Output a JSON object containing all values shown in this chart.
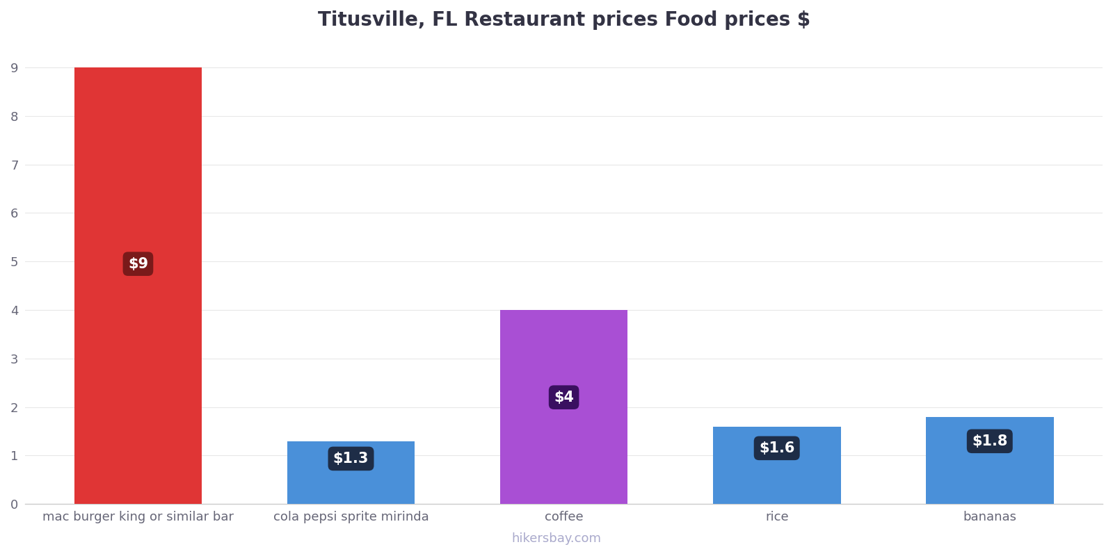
{
  "title": "Titusville, FL Restaurant prices Food prices $",
  "categories": [
    "mac burger king or similar bar",
    "cola pepsi sprite mirinda",
    "coffee",
    "rice",
    "bananas"
  ],
  "values": [
    9,
    1.3,
    4,
    1.6,
    1.8
  ],
  "bar_colors": [
    "#e03535",
    "#4a90d9",
    "#a94fd4",
    "#4a90d9",
    "#4a90d9"
  ],
  "label_texts": [
    "$9",
    "$1.3",
    "$4",
    "$1.6",
    "$1.8"
  ],
  "label_box_colors": [
    "#7a1a1a",
    "#1e2d47",
    "#3a1060",
    "#1e2d47",
    "#1e2d47"
  ],
  "label_box_top_colors": [
    "#7a1a1a",
    "#7a8a9a",
    "#3a1060",
    "#1e2d47",
    "#1e2d47"
  ],
  "ylim": [
    0,
    9.5
  ],
  "yticks": [
    0,
    1,
    2,
    3,
    4,
    5,
    6,
    7,
    8,
    9
  ],
  "background_color": "#ffffff",
  "grid_color": "#e8e8e8",
  "title_fontsize": 20,
  "tick_label_fontsize": 13,
  "watermark": "hikersbay.com",
  "watermark_color": "#aaaacc"
}
